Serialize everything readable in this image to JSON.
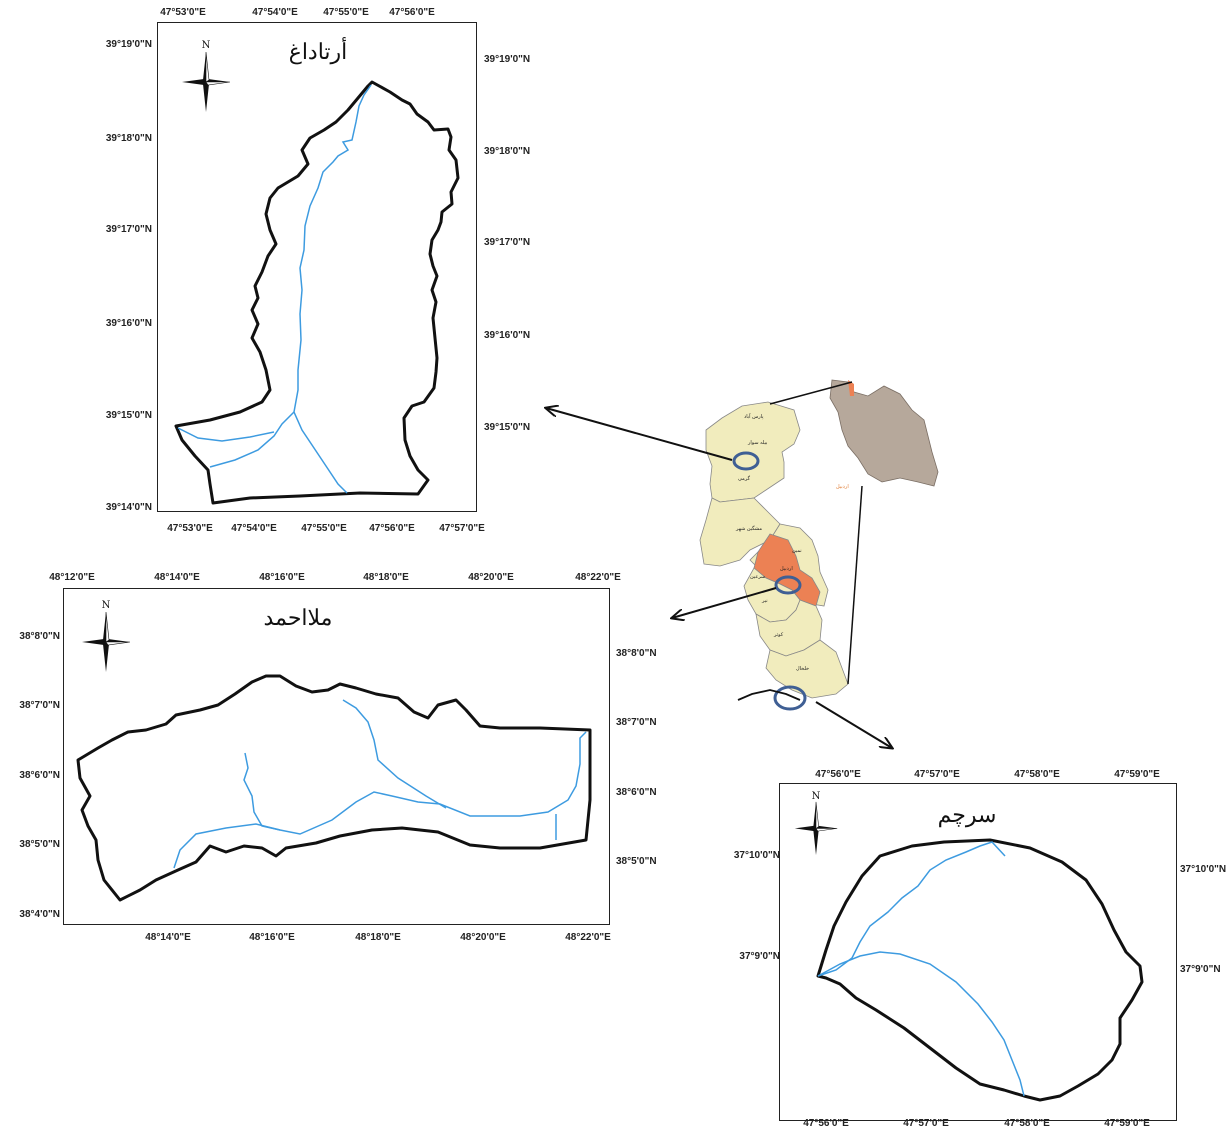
{
  "maps": {
    "artadagh": {
      "title": "أرتاداغ",
      "north_label": "N",
      "x_ticks": [
        "47°53'0\"E",
        "47°54'0\"E",
        "47°55'0\"E",
        "47°56'0\"E",
        "47°57'0\"E"
      ],
      "y_ticks_left": [
        "39°19'0\"N",
        "39°18'0\"N",
        "39°17'0\"N",
        "39°16'0\"N",
        "39°15'0\"N",
        "39°14'0\"N"
      ],
      "y_ticks_right": [
        "39°19'0\"N",
        "39°18'0\"N",
        "39°17'0\"N",
        "39°16'0\"N",
        "39°15'0\"N"
      ]
    },
    "mollaahmad": {
      "title": "ملااحمد",
      "north_label": "N",
      "x_ticks_top": [
        "48°12'0\"E",
        "48°14'0\"E",
        "48°16'0\"E",
        "48°18'0\"E",
        "48°20'0\"E",
        "48°22'0\"E"
      ],
      "x_ticks_bottom": [
        "48°14'0\"E",
        "48°16'0\"E",
        "48°18'0\"E",
        "48°20'0\"E",
        "48°22'0\"E"
      ],
      "y_ticks_left": [
        "38°8'0\"N",
        "38°7'0\"N",
        "38°6'0\"N",
        "38°5'0\"N",
        "38°4'0\"N"
      ],
      "y_ticks_right": [
        "38°8'0\"N",
        "38°7'0\"N",
        "38°6'0\"N",
        "38°5'0\"N"
      ]
    },
    "sarcham": {
      "title": "سرچم",
      "north_label": "N",
      "x_ticks": [
        "47°56'0\"E",
        "47°57'0\"E",
        "47°58'0\"E",
        "47°59'0\"E"
      ],
      "y_ticks_left": [
        "37°10'0\"N",
        "37°9'0\"N"
      ],
      "y_ticks_right": [
        "37°10'0\"N",
        "37°9'0\"N"
      ]
    }
  },
  "province": {
    "county_labels": [
      "پارس آباد",
      "بیله سوار",
      "گرمی",
      "مشگین شهر",
      "نمین",
      "اردبیل",
      "سرعین",
      "نیر",
      "کوثر",
      "خلخال"
    ],
    "iran_label": "اردبیل"
  },
  "colors": {
    "boundary": "#111111",
    "river": "#3d9be0",
    "province_fill": "#f1ecbd",
    "highlight_fill": "#ec8154",
    "iran_fill": "#b6a89b",
    "marker_ring": "#3f5f94"
  }
}
